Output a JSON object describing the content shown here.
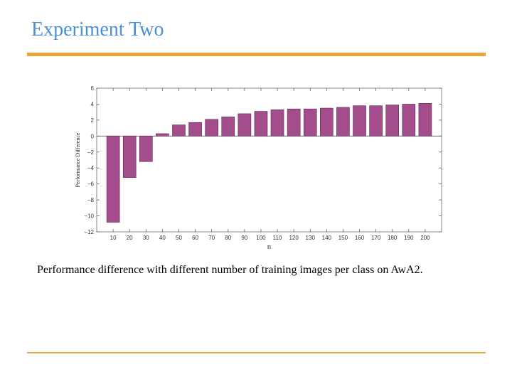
{
  "slide": {
    "title": "Experiment Two",
    "caption": "Performance difference with different number of training images per class on AwA2.",
    "accent_color": "#eba33b",
    "title_color": "#4a8fd8"
  },
  "chart_data": {
    "type": "bar",
    "categories": [
      "10",
      "20",
      "30",
      "40",
      "50",
      "60",
      "70",
      "80",
      "90",
      "100",
      "110",
      "120",
      "130",
      "140",
      "150",
      "160",
      "170",
      "180",
      "190",
      "200"
    ],
    "values": [
      -10.8,
      -5.2,
      -3.2,
      0.3,
      1.4,
      1.7,
      2.1,
      2.4,
      2.8,
      3.1,
      3.3,
      3.4,
      3.4,
      3.5,
      3.6,
      3.8,
      3.8,
      3.9,
      4.0,
      4.1
    ],
    "xlabel": "n",
    "ylabel": "Performance Difference",
    "ylim": [
      -12,
      6
    ],
    "yticks": [
      6,
      4,
      2,
      0,
      -2,
      -4,
      -6,
      -8,
      -10,
      -12
    ],
    "ytick_labels": [
      "6",
      "4",
      "2",
      "0",
      "−2",
      "−4",
      "−6",
      "−8",
      "−10",
      "−12"
    ],
    "bar_color": "#a44d8c",
    "grid": false
  }
}
